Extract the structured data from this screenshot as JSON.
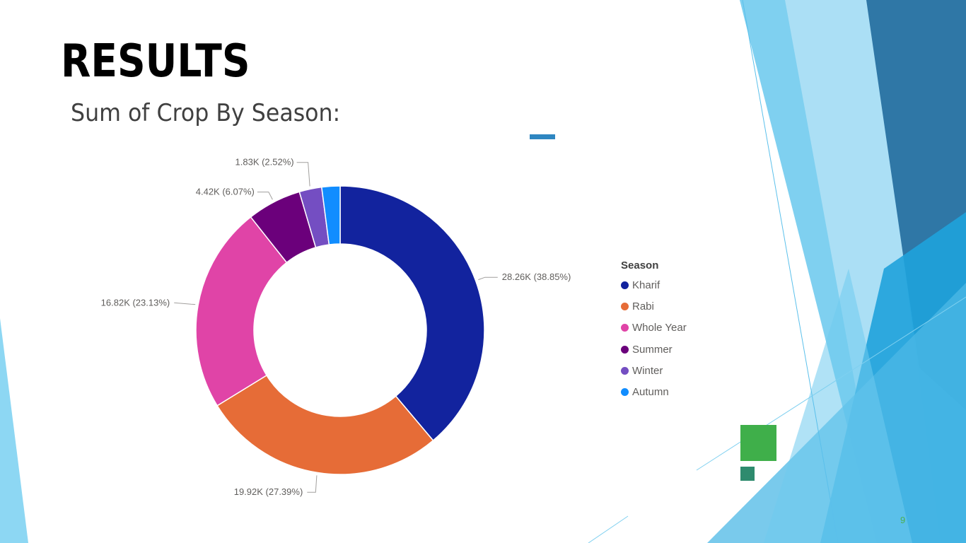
{
  "slide": {
    "title": "RESULTS",
    "subtitle": "Sum of Crop By Season:",
    "page_number": "9",
    "accent_color": "#2E86C1",
    "page_number_color": "#4CAF50"
  },
  "legend": {
    "title": "Season"
  },
  "chart_data": {
    "type": "pie",
    "variant": "donut",
    "legend_title": "Season",
    "legend_placement": "right",
    "slices": [
      {
        "name": "Kharif",
        "value": 28260,
        "label": "28.26K (38.85%)",
        "percent": 38.85,
        "color": "#12239E"
      },
      {
        "name": "Rabi",
        "value": 19920,
        "label": "19.92K (27.39%)",
        "percent": 27.39,
        "color": "#E66C37"
      },
      {
        "name": "Whole Year",
        "value": 16820,
        "label": "16.82K (23.13%)",
        "percent": 23.13,
        "color": "#E044A7"
      },
      {
        "name": "Summer",
        "value": 4420,
        "label": "4.42K (6.07%)",
        "percent": 6.07,
        "color": "#6B007B"
      },
      {
        "name": "Winter",
        "value": 1830,
        "label": "1.83K (2.52%)",
        "percent": 2.52,
        "color": "#744EC2"
      },
      {
        "name": "Autumn",
        "value": 1490,
        "label": "",
        "percent": 2.04,
        "color": "#118DFF"
      }
    ]
  }
}
